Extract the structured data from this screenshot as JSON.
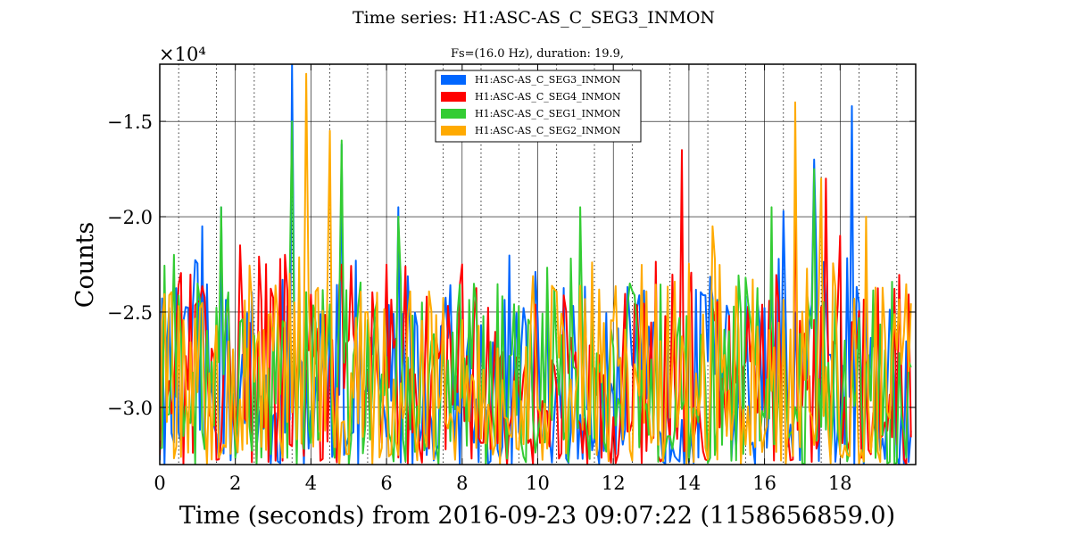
{
  "chart_data": {
    "type": "line",
    "title": "Time series:  H1:ASC-AS_C_SEG3_INMON",
    "subtitle": "Fs=(16.0 Hz), duration: 19.9,",
    "xlabel": "Time (seconds) from 2016-09-23 09:07:22 (1158656859.0)",
    "ylabel": "Counts",
    "y_multiplier": "×10⁴",
    "xlim": [
      0,
      20
    ],
    "ylim": [
      -3.3,
      -1.2
    ],
    "x_ticks": [
      0,
      2,
      4,
      6,
      8,
      10,
      12,
      14,
      16,
      18
    ],
    "x_tick_labels": [
      "0",
      "2",
      "4",
      "6",
      "8",
      "10",
      "12",
      "14",
      "16",
      "18"
    ],
    "y_ticks": [
      -3.0,
      -2.5,
      -2.0,
      -1.5
    ],
    "y_tick_labels": [
      "−3.0",
      "−2.5",
      "−2.0",
      "−1.5"
    ],
    "grid": "major solid, minor dotted (x)",
    "legend_position": "top-center",
    "sample_rate_hz": 16,
    "duration_s": 19.9,
    "series": [
      {
        "name": "H1:ASC-AS_C_SEG3_INMON",
        "color": "#0066ff",
        "x_range": [
          0,
          19.9375
        ],
        "y_range": [
          -3.3,
          -1.2
        ],
        "peaks": [
          [
            1.1,
            -2.05
          ],
          [
            1.6,
            -1.95
          ],
          [
            3.5,
            -1.2
          ],
          [
            4.8,
            -1.62
          ],
          [
            6.3,
            -1.95
          ],
          [
            16.5,
            -1.97
          ],
          [
            17.3,
            -1.7
          ],
          [
            18.3,
            -1.42
          ]
        ]
      },
      {
        "name": "H1:ASC-AS_C_SEG4_INMON",
        "color": "#ff0000",
        "x_range": [
          0,
          19.9375
        ],
        "y_range": [
          -3.3,
          -1.2
        ],
        "peaks": [
          [
            2.1,
            -2.15
          ],
          [
            3.3,
            -2.2
          ],
          [
            8.0,
            -2.25
          ],
          [
            13.8,
            -1.65
          ],
          [
            16.8,
            -1.75
          ],
          [
            17.6,
            -1.8
          ],
          [
            18.0,
            -2.1
          ]
        ]
      },
      {
        "name": "H1:ASC-AS_C_SEG1_INMON",
        "color": "#33cc33",
        "x_range": [
          0,
          19.9375
        ],
        "y_range": [
          -3.3,
          -1.2
        ],
        "peaks": [
          [
            0.4,
            -2.2
          ],
          [
            1.6,
            -1.95
          ],
          [
            3.5,
            -1.5
          ],
          [
            4.8,
            -1.6
          ],
          [
            6.3,
            -2.0
          ],
          [
            11.1,
            -1.95
          ],
          [
            16.2,
            -1.95
          ],
          [
            17.3,
            -1.75
          ]
        ]
      },
      {
        "name": "H1:ASC-AS_C_SEG2_INMON",
        "color": "#ffaa00",
        "x_range": [
          0,
          19.9375
        ],
        "y_range": [
          -3.3,
          -1.2
        ],
        "peaks": [
          [
            3.9,
            -1.25
          ],
          [
            4.5,
            -1.55
          ],
          [
            14.6,
            -2.05
          ],
          [
            16.8,
            -1.4
          ],
          [
            17.5,
            -1.8
          ],
          [
            18.7,
            -2.0
          ]
        ]
      }
    ]
  }
}
